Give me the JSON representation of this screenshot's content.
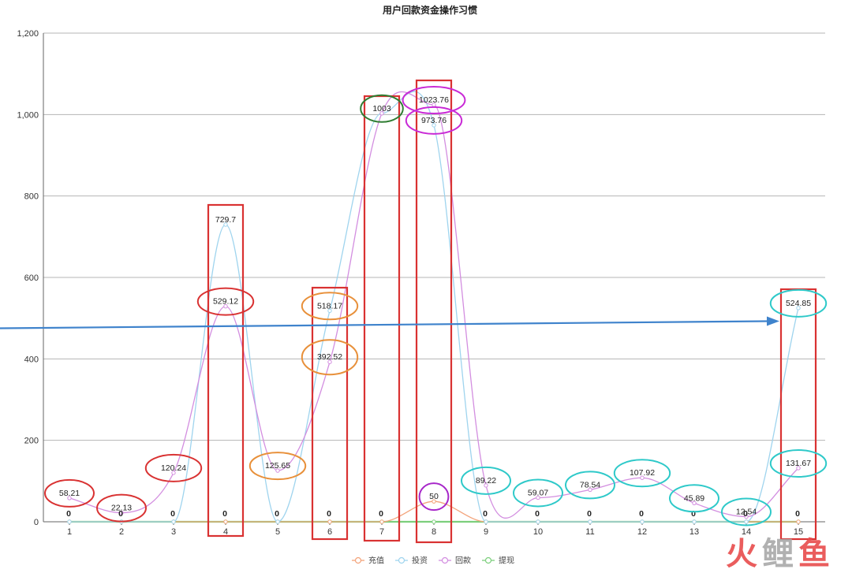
{
  "chart_data": {
    "type": "line",
    "title": "用户回款资金操作习惯",
    "categories": [
      "1",
      "2",
      "3",
      "4",
      "5",
      "6",
      "7",
      "8",
      "9",
      "10",
      "11",
      "12",
      "13",
      "14",
      "15"
    ],
    "ylim": [
      0,
      1200
    ],
    "yticks": [
      0,
      200,
      400,
      600,
      800,
      1000,
      1200
    ],
    "ytick_labels": [
      "0",
      "200",
      "400",
      "600",
      "800",
      "1,000",
      "1,200"
    ],
    "grid": true,
    "legend_position": "bottom-center",
    "series": [
      {
        "name": "充值",
        "color": "#f3a37a",
        "values": [
          0,
          0,
          0,
          0,
          0,
          0,
          0,
          50,
          0,
          0,
          0,
          0,
          0,
          0,
          0
        ]
      },
      {
        "name": "投资",
        "color": "#9fd4ee",
        "values": [
          0,
          0,
          0,
          729.7,
          0,
          518.17,
          1003,
          973.76,
          0,
          0,
          0,
          0,
          0,
          0,
          524.85
        ]
      },
      {
        "name": "回款",
        "color": "#d38ee0",
        "values": [
          58.21,
          22.13,
          120.24,
          529.12,
          125.65,
          392.52,
          1003,
          1023.76,
          89.22,
          59.07,
          78.54,
          107.92,
          45.89,
          12.54,
          131.67
        ]
      },
      {
        "name": "提现",
        "color": "#7ccf7c",
        "values": [
          0,
          0,
          0,
          0,
          0,
          0,
          0,
          0,
          0,
          0,
          0,
          0,
          0,
          0,
          0
        ]
      }
    ],
    "data_labels": [
      {
        "x": "1",
        "y": 58.21,
        "text": "58.21",
        "highlight": "ellipse",
        "color": "#d93232"
      },
      {
        "x": "2",
        "y": 22.13,
        "text": "22.13",
        "highlight": "ellipse",
        "color": "#d93232"
      },
      {
        "x": "3",
        "y": 120.24,
        "text": "120.24",
        "highlight": "ellipse",
        "color": "#d93232"
      },
      {
        "x": "4",
        "y": 729.7,
        "text": "729.7",
        "highlight": "none",
        "color": ""
      },
      {
        "x": "4",
        "y": 529.12,
        "text": "529.12",
        "highlight": "ellipse",
        "color": "#d93232"
      },
      {
        "x": "5",
        "y": 125.65,
        "text": "125.65",
        "highlight": "ellipse",
        "color": "#e8903a"
      },
      {
        "x": "6",
        "y": 518.17,
        "text": "518.17",
        "highlight": "ellipse",
        "color": "#e8903a"
      },
      {
        "x": "6",
        "y": 392.52,
        "text": "392.52",
        "highlight": "ellipse",
        "color": "#e8903a"
      },
      {
        "x": "7",
        "y": 1003,
        "text": "1003",
        "highlight": "ellipse",
        "color": "#2f7d32"
      },
      {
        "x": "8",
        "y": 1023.76,
        "text": "1023.76",
        "highlight": "ellipse",
        "color": "#c92ad6"
      },
      {
        "x": "8",
        "y": 973.76,
        "text": "973.76",
        "highlight": "ellipse",
        "color": "#c92ad6"
      },
      {
        "x": "8",
        "y": 50,
        "text": "50",
        "highlight": "ellipse",
        "color": "#a727c9"
      },
      {
        "x": "9",
        "y": 89.22,
        "text": "89.22",
        "highlight": "ellipse",
        "color": "#2ec9c9"
      },
      {
        "x": "10",
        "y": 59.07,
        "text": "59.07",
        "highlight": "ellipse",
        "color": "#2ec9c9"
      },
      {
        "x": "11",
        "y": 78.54,
        "text": "78.54",
        "highlight": "ellipse",
        "color": "#2ec9c9"
      },
      {
        "x": "12",
        "y": 107.92,
        "text": "107.92",
        "highlight": "ellipse",
        "color": "#2ec9c9"
      },
      {
        "x": "13",
        "y": 45.89,
        "text": "45.89",
        "highlight": "ellipse",
        "color": "#2ec9c9"
      },
      {
        "x": "14",
        "y": 12.54,
        "text": "12.54",
        "highlight": "ellipse",
        "color": "#2ec9c9"
      },
      {
        "x": "15",
        "y": 524.85,
        "text": "524.85",
        "highlight": "ellipse",
        "color": "#2ec9c9"
      },
      {
        "x": "15",
        "y": 131.67,
        "text": "131.67",
        "highlight": "ellipse",
        "color": "#2ec9c9"
      }
    ],
    "zero_label": "0",
    "highlight_columns": [
      "4",
      "6",
      "7",
      "8",
      "15"
    ],
    "highlight_column_color": "#d93232",
    "arrow": {
      "from_y": 510,
      "to_x": "15",
      "to_y": 524.85,
      "color": "#3f83cc"
    }
  },
  "watermark": {
    "text": "火鲤鱼",
    "colors": [
      "#e84c4c",
      "#a9a9a9",
      "#e84c4c"
    ]
  }
}
